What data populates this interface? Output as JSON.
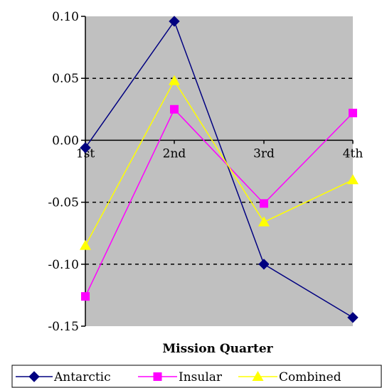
{
  "chart_data": {
    "type": "line",
    "categories": [
      "1st",
      "2nd",
      "3rd",
      "4th"
    ],
    "xlabel": "Mission Quarter",
    "ylabel": "",
    "ylim": [
      -0.15,
      0.1
    ],
    "yticks": [
      "0.10",
      "0.05",
      "0.00",
      "-0.05",
      "-0.10",
      "-0.15"
    ],
    "ytick_values": [
      0.1,
      0.05,
      0.0,
      -0.05,
      -0.1,
      -0.15
    ],
    "gridlines": "dashed at 0.05, -0.05, -0.10",
    "legend_position": "bottom",
    "series": [
      {
        "name": "Antarctic",
        "values": [
          -0.006,
          0.096,
          -0.1,
          -0.143
        ],
        "color": "#000080",
        "marker": "diamond"
      },
      {
        "name": "Insular",
        "values": [
          -0.126,
          0.025,
          -0.051,
          0.022
        ],
        "color": "#ff00ff",
        "marker": "square"
      },
      {
        "name": "Combined",
        "values": [
          -0.085,
          0.048,
          -0.066,
          -0.032
        ],
        "color": "#ffff00",
        "marker": "triangle"
      }
    ]
  },
  "colors": {
    "plot_background": "#c0c0c0",
    "axis": "#000000"
  }
}
